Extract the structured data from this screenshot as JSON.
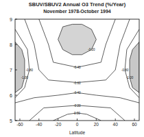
{
  "chart_data": {
    "type": "contour",
    "title": "SBUV/SBUV2 Annual O3 Trend (%/Year)",
    "subtitle": "November 1978-October 1994",
    "x_label": "Latitude",
    "xlim": [
      -65,
      65
    ],
    "xticks": [
      -60,
      -40,
      -20,
      0,
      20,
      40,
      60
    ],
    "ylim": [
      5,
      9
    ],
    "yticks": [
      5,
      6,
      7,
      8,
      9
    ],
    "grid": false,
    "series": [
      {
        "name": "-1.00",
        "type": "area",
        "color": "#c8c8c8",
        "x": [
          -65,
          -58,
          -55,
          -55,
          -58,
          -65
        ],
        "y": [
          8.1,
          7.8,
          7.4,
          6.7,
          6.3,
          6.1
        ]
      },
      {
        "name": "-1.00",
        "type": "area",
        "color": "#c8c8c8",
        "x": [
          65,
          58,
          55,
          55,
          58,
          65
        ],
        "y": [
          8.1,
          7.8,
          7.4,
          6.7,
          6.3,
          6.1
        ]
      },
      {
        "name": "-0.20",
        "type": "area",
        "color": "#d4d4d4",
        "x": [
          -15,
          -5,
          5,
          15,
          20,
          15,
          5,
          -5,
          -15,
          -20,
          -15
        ],
        "y": [
          8.7,
          8.8,
          8.8,
          8.6,
          8.2,
          7.8,
          7.6,
          7.6,
          7.8,
          8.2,
          8.7
        ]
      },
      {
        "name": "-0.40",
        "type": "line",
        "x": [
          -40,
          -30,
          -25,
          0,
          25,
          30,
          40
        ],
        "y": [
          9,
          8,
          7.3,
          7.1,
          7.3,
          8,
          9
        ]
      },
      {
        "name": "-0.60",
        "type": "line",
        "x": [
          -55,
          -45,
          -40,
          -30,
          0,
          30,
          40,
          45,
          55
        ],
        "y": [
          9,
          8,
          7,
          6.6,
          6.5,
          6.6,
          7,
          8,
          9
        ]
      },
      {
        "name": "-0.80",
        "type": "line",
        "x": [
          -65,
          -52,
          -50,
          -55,
          -65
        ],
        "y": [
          8.6,
          7.8,
          7,
          6.3,
          5.9
        ]
      },
      {
        "name": "-0.80",
        "type": "line",
        "x": [
          65,
          52,
          50,
          55,
          65
        ],
        "y": [
          8.6,
          7.8,
          7,
          6.3,
          5.9
        ]
      },
      {
        "name": "-0.40",
        "type": "line",
        "x": [
          -65,
          -45,
          -20,
          0,
          20,
          45,
          65
        ],
        "y": [
          5.7,
          5.9,
          6,
          6.1,
          6,
          5.9,
          5.7
        ]
      },
      {
        "name": "-0.20",
        "type": "line",
        "x": [
          -50,
          -35,
          0,
          35,
          50
        ],
        "y": [
          5,
          5.5,
          5.6,
          5.5,
          5
        ]
      },
      {
        "name": "0.00",
        "type": "line",
        "x": [
          -25,
          -10,
          0,
          10,
          25
        ],
        "y": [
          5,
          5.25,
          5.3,
          5.25,
          5
        ]
      }
    ]
  }
}
